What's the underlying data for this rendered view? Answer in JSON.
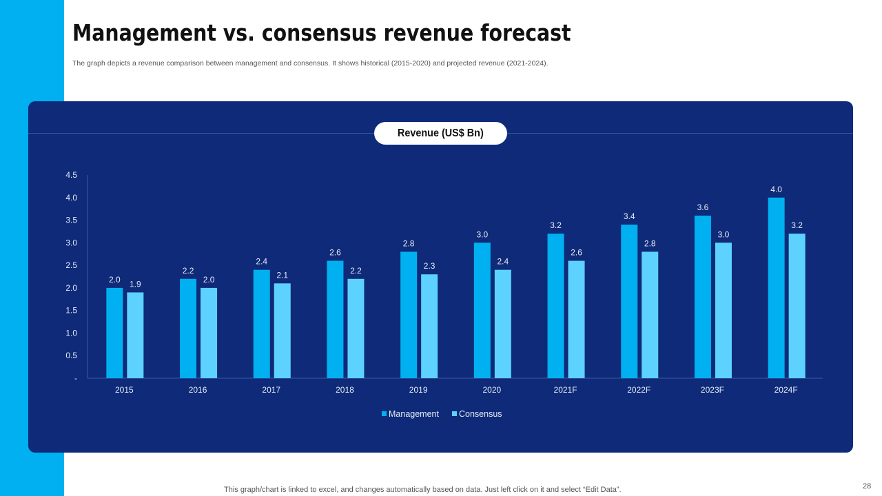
{
  "title": "Management vs. consensus revenue forecast",
  "subtitle": "The graph depicts a revenue comparison between management and consensus. It shows historical (2015-2020) and projected revenue (2021-2024).",
  "footer": "This graph/chart is linked to excel,  and changes automatically based on data. Just left click on it and select “Edit Data”.",
  "page_number": "28",
  "colors": {
    "sidebar": "#00b0f0",
    "panel": "#0e2a78",
    "management": "#00b0f0",
    "consensus": "#5dd2ff"
  },
  "chart_data": {
    "type": "bar",
    "title": "Revenue (US$ Bn)",
    "categories": [
      "2015",
      "2016",
      "2017",
      "2018",
      "2019",
      "2020",
      "2021F",
      "2022F",
      "2023F",
      "2024F"
    ],
    "series": [
      {
        "name": "Management",
        "values": [
          2.0,
          2.2,
          2.4,
          2.6,
          2.8,
          3.0,
          3.2,
          3.4,
          3.6,
          4.0
        ]
      },
      {
        "name": "Consensus",
        "values": [
          1.9,
          2.0,
          2.1,
          2.2,
          2.3,
          2.4,
          2.6,
          2.8,
          3.0,
          3.2
        ]
      }
    ],
    "yticks": [
      "-",
      "0.5",
      "1.0",
      "1.5",
      "2.0",
      "2.5",
      "3.0",
      "3.5",
      "4.0",
      "4.5"
    ],
    "ylim": [
      0,
      4.5
    ],
    "grid": false,
    "legend": "bottom"
  }
}
